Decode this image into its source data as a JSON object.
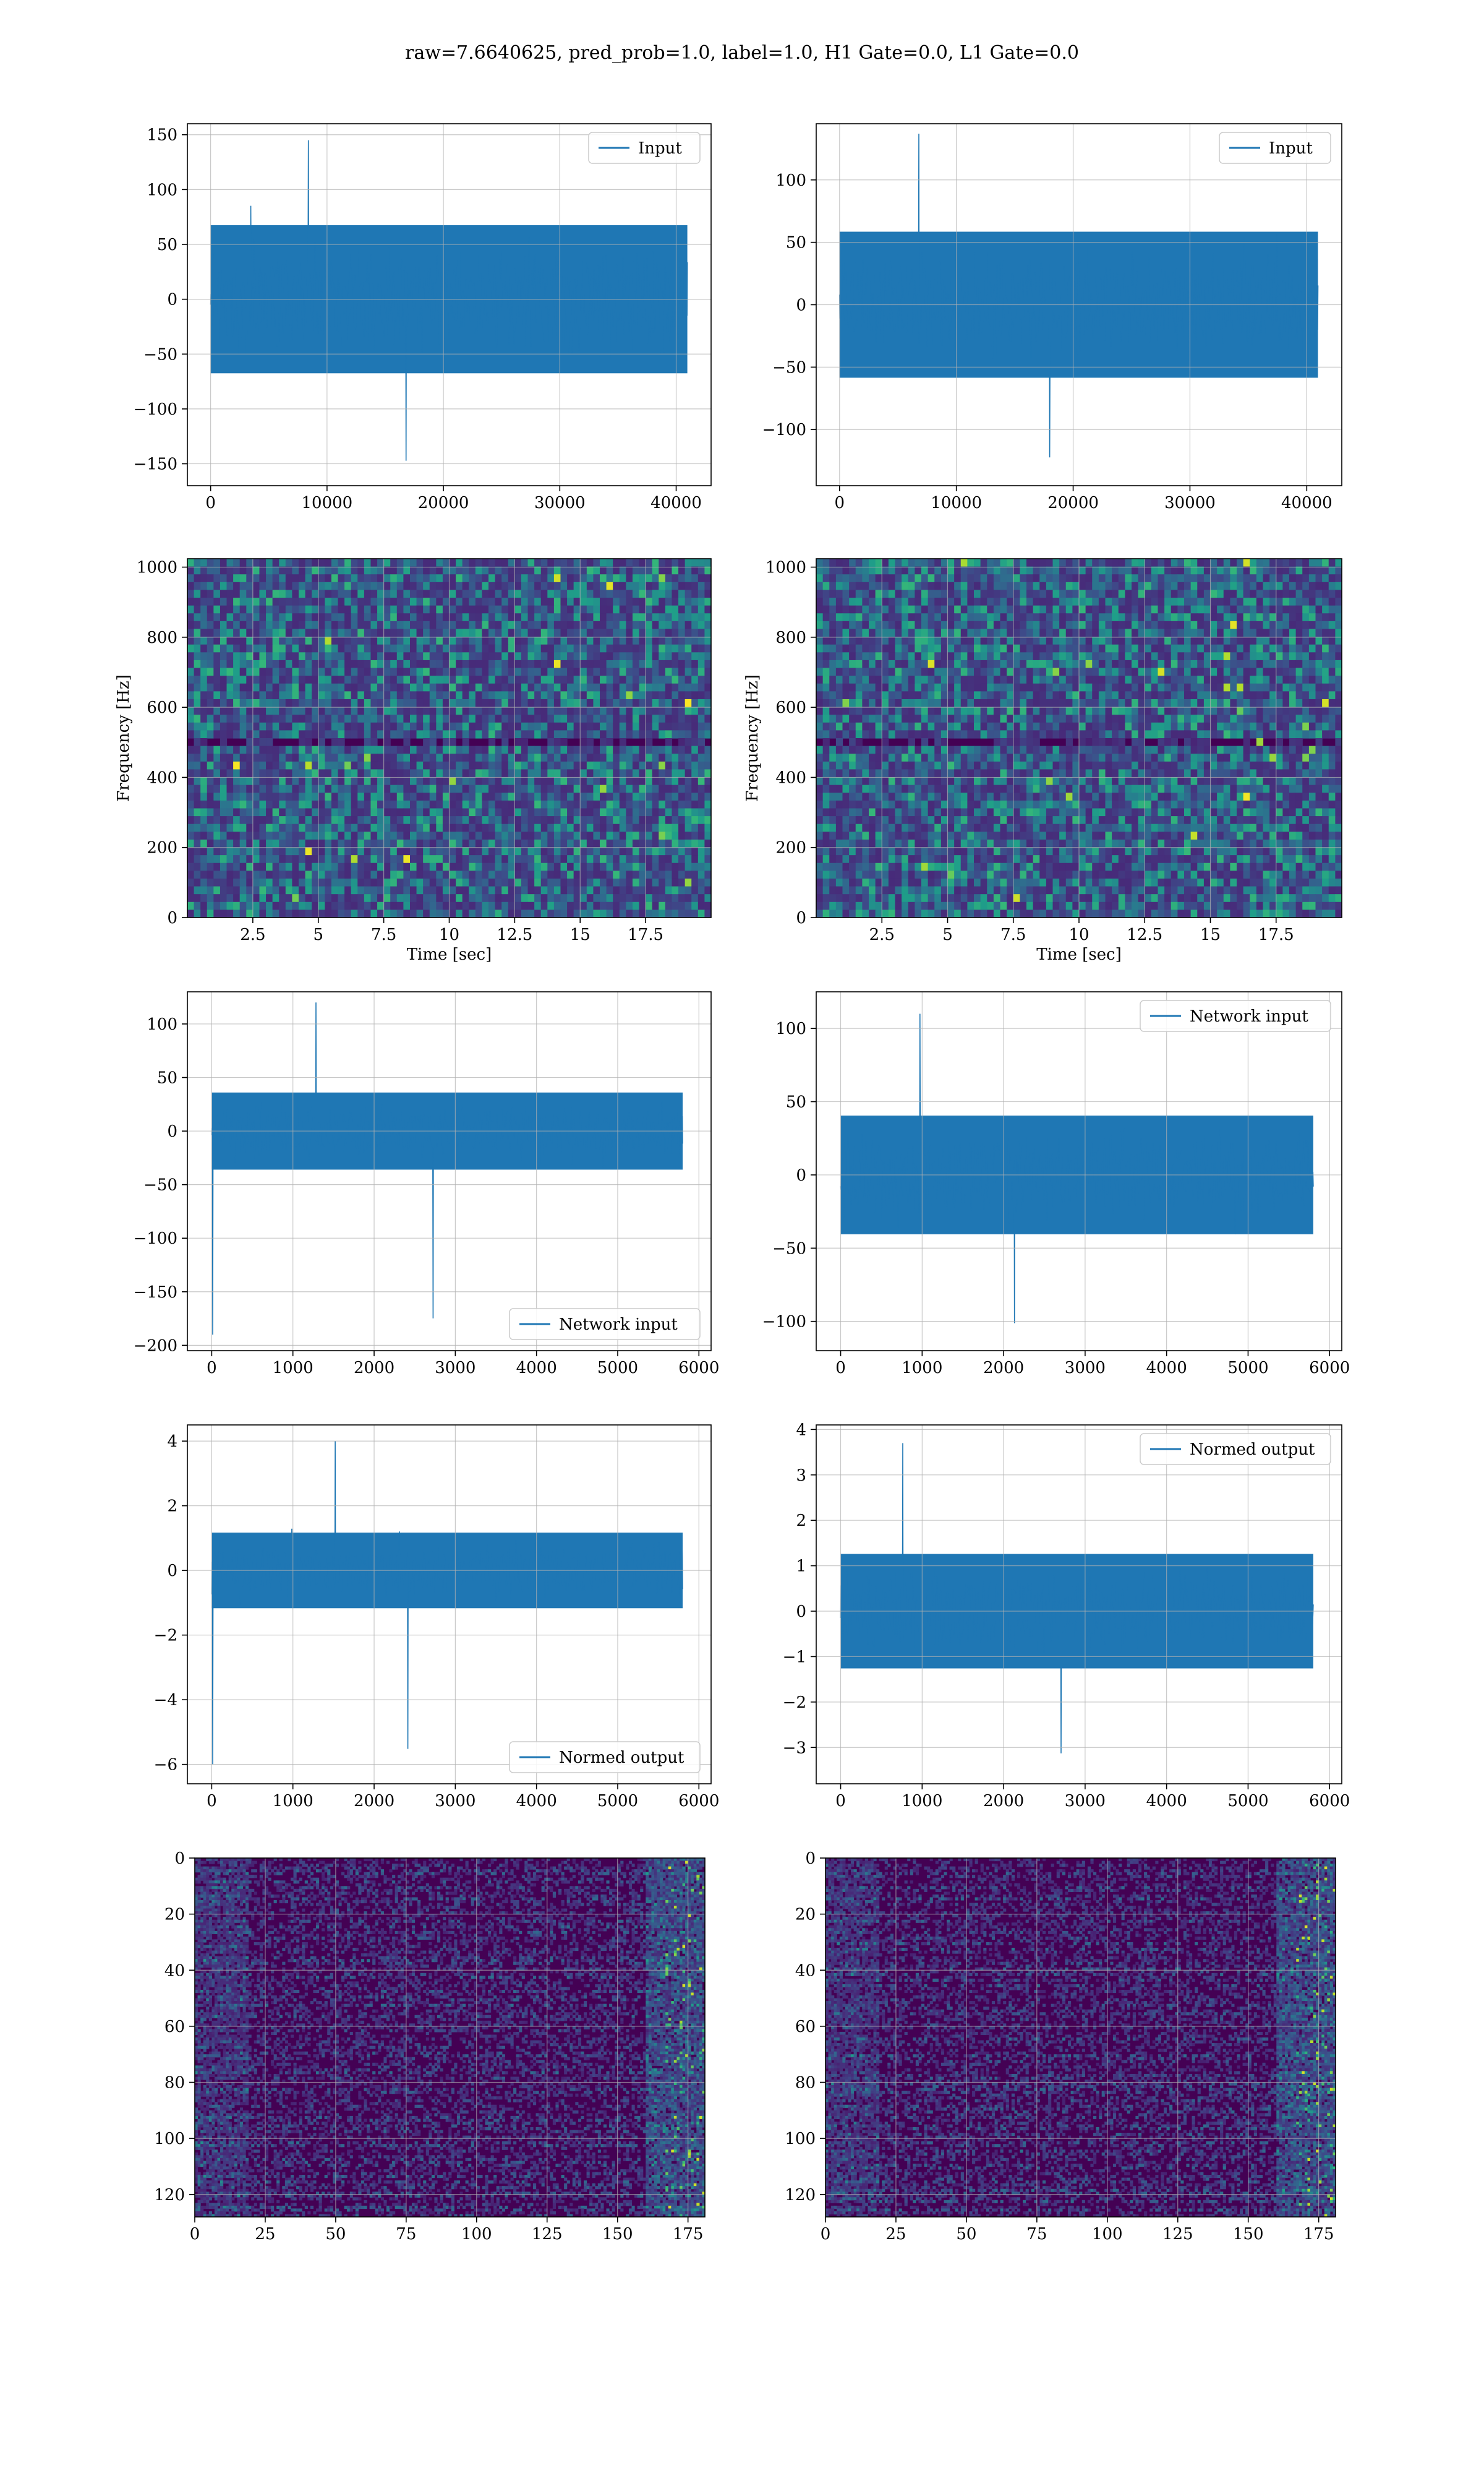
{
  "figure": {
    "title": "raw=7.6640625, pred_prob=1.0, label=1.0, H1 Gate=0.0, L1 Gate=0.0"
  },
  "colors": {
    "series": "#1f77b4",
    "viridis": [
      "#440154",
      "#482878",
      "#3e4a89",
      "#31688e",
      "#26828e",
      "#1f9e89",
      "#35b779",
      "#6ece58",
      "#b5de2b",
      "#fde725"
    ],
    "grid": "#b0b0b0"
  },
  "chart_data": [
    {
      "id": "input-left",
      "type": "line",
      "legend": {
        "label": "Input",
        "location": "upper right"
      },
      "xlim": [
        -2000,
        43000
      ],
      "ylim": [
        -170,
        160
      ],
      "xticks": [
        0,
        10000,
        20000,
        30000,
        40000
      ],
      "yticks": [
        -150,
        -100,
        -50,
        0,
        50,
        100,
        150
      ],
      "xlabel": "",
      "ylabel": "",
      "grid": true,
      "series": [
        {
          "x_range": [
            0,
            40960
          ],
          "envelope": {
            "band": [
              -75,
              75
            ],
            "peak_max": 145,
            "peak_min": -160
          }
        }
      ]
    },
    {
      "id": "input-right",
      "type": "line",
      "legend": {
        "label": "Input",
        "location": "upper right"
      },
      "xlim": [
        -2000,
        43000
      ],
      "ylim": [
        -145,
        145
      ],
      "xticks": [
        0,
        10000,
        20000,
        30000,
        40000
      ],
      "yticks": [
        -100,
        -50,
        0,
        50,
        100
      ],
      "xlabel": "",
      "ylabel": "",
      "grid": true,
      "series": [
        {
          "x_range": [
            0,
            40960
          ],
          "envelope": {
            "band": [
              -65,
              65
            ],
            "peak_max": 137,
            "peak_min": -133
          }
        }
      ]
    },
    {
      "id": "spectrogram-left",
      "type": "heatmap",
      "xlim": [
        0,
        20
      ],
      "ylim": [
        0,
        1024
      ],
      "xticks": [
        2.5,
        5.0,
        7.5,
        10.0,
        12.5,
        15.0,
        17.5
      ],
      "yticks": [
        0,
        200,
        400,
        600,
        800,
        1000
      ],
      "xlabel": "Time [sec]",
      "ylabel": "Frequency [Hz]",
      "grid": true,
      "colormap": "viridis",
      "description_rows": 46,
      "description_cols": 80
    },
    {
      "id": "spectrogram-right",
      "type": "heatmap",
      "xlim": [
        0,
        20
      ],
      "ylim": [
        0,
        1024
      ],
      "xticks": [
        2.5,
        5.0,
        7.5,
        10.0,
        12.5,
        15.0,
        17.5
      ],
      "yticks": [
        0,
        200,
        400,
        600,
        800,
        1000
      ],
      "xlabel": "Time [sec]",
      "ylabel": "Frequency [Hz]",
      "grid": true,
      "colormap": "viridis",
      "description_rows": 46,
      "description_cols": 80
    },
    {
      "id": "network-left",
      "type": "line",
      "legend": {
        "label": "Network input",
        "location": "lower right"
      },
      "xlim": [
        -300,
        6150
      ],
      "ylim": [
        -205,
        130
      ],
      "xticks": [
        0,
        1000,
        2000,
        3000,
        4000,
        5000,
        6000
      ],
      "yticks": [
        -200,
        -150,
        -100,
        -50,
        0,
        50,
        100
      ],
      "xlabel": "",
      "ylabel": "",
      "grid": true,
      "series": [
        {
          "x_range": [
            0,
            5800
          ],
          "envelope": {
            "band": [
              -40,
              40
            ],
            "peak_max": 120,
            "peak_min": -190
          }
        }
      ]
    },
    {
      "id": "network-right",
      "type": "line",
      "legend": {
        "label": "Network input",
        "location": "upper right"
      },
      "xlim": [
        -300,
        6150
      ],
      "ylim": [
        -120,
        125
      ],
      "xticks": [
        0,
        1000,
        2000,
        3000,
        4000,
        5000,
        6000
      ],
      "yticks": [
        -100,
        -50,
        0,
        50,
        100
      ],
      "xlabel": "",
      "ylabel": "",
      "grid": true,
      "series": [
        {
          "x_range": [
            0,
            5800
          ],
          "envelope": {
            "band": [
              -45,
              45
            ],
            "peak_max": 110,
            "peak_min": -110
          }
        }
      ]
    },
    {
      "id": "normed-left",
      "type": "line",
      "legend": {
        "label": "Normed output",
        "location": "lower right"
      },
      "xlim": [
        -300,
        6150
      ],
      "ylim": [
        -6.6,
        4.5
      ],
      "xticks": [
        0,
        1000,
        2000,
        3000,
        4000,
        5000,
        6000
      ],
      "yticks": [
        -6,
        -4,
        -2,
        0,
        2,
        4
      ],
      "xlabel": "",
      "ylabel": "",
      "grid": true,
      "series": [
        {
          "x_range": [
            0,
            5800
          ],
          "envelope": {
            "band": [
              -1.3,
              1.3
            ],
            "peak_max": 4.0,
            "peak_min": -6.0
          }
        }
      ]
    },
    {
      "id": "normed-right",
      "type": "line",
      "legend": {
        "label": "Normed output",
        "location": "upper right"
      },
      "xlim": [
        -300,
        6150
      ],
      "ylim": [
        -3.8,
        4.1
      ],
      "xticks": [
        0,
        1000,
        2000,
        3000,
        4000,
        5000,
        6000
      ],
      "yticks": [
        -3,
        -2,
        -1,
        0,
        1,
        2,
        3,
        4
      ],
      "xlabel": "",
      "ylabel": "",
      "grid": true,
      "series": [
        {
          "x_range": [
            0,
            5800
          ],
          "envelope": {
            "band": [
              -1.4,
              1.4
            ],
            "peak_max": 3.7,
            "peak_min": -3.4
          }
        }
      ]
    },
    {
      "id": "features-left",
      "type": "heatmap",
      "xlim": [
        0,
        181
      ],
      "ylim": [
        128,
        0
      ],
      "xticks": [
        0,
        25,
        50,
        75,
        100,
        125,
        150,
        175
      ],
      "yticks": [
        0,
        20,
        40,
        60,
        80,
        100,
        120
      ],
      "xlabel": "",
      "ylabel": "",
      "grid": true,
      "colormap": "viridis",
      "description_rows": 128,
      "description_cols": 181
    },
    {
      "id": "features-right",
      "type": "heatmap",
      "xlim": [
        0,
        181
      ],
      "ylim": [
        128,
        0
      ],
      "xticks": [
        0,
        25,
        50,
        75,
        100,
        125,
        150,
        175
      ],
      "yticks": [
        0,
        20,
        40,
        60,
        80,
        100,
        120
      ],
      "xlabel": "",
      "ylabel": "",
      "grid": true,
      "colormap": "viridis",
      "description_rows": 128,
      "description_cols": 181
    }
  ]
}
